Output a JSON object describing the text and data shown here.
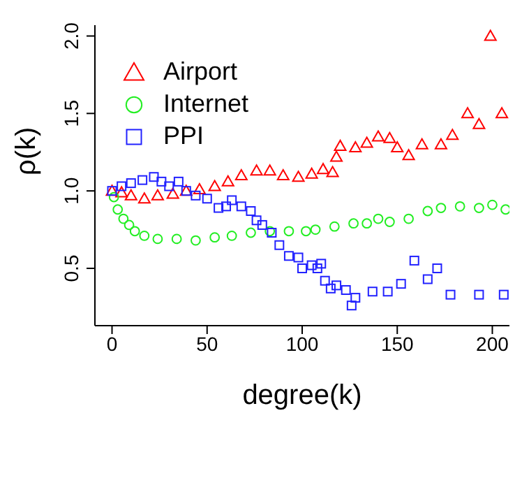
{
  "chart_data": {
    "type": "scatter",
    "xlabel": "degree(k)",
    "ylabel": "ρ(k)",
    "xlim": [
      -9,
      209
    ],
    "ylim": [
      0.13,
      2.07
    ],
    "xticks": [
      0,
      50,
      100,
      150,
      200
    ],
    "yticks": [
      {
        "value": 0.5,
        "label": "0.5"
      },
      {
        "value": 1,
        "label": "1.0"
      },
      {
        "value": 1.5,
        "label": "1.5"
      },
      {
        "value": 2,
        "label": "2.0"
      }
    ],
    "legend": "top left",
    "series": [
      {
        "name": "Airport",
        "color": "#ff0000",
        "marker": "triangle",
        "x": [
          0,
          5,
          10,
          17,
          24,
          32,
          39,
          46,
          54,
          61,
          68,
          76,
          83,
          90,
          98,
          105,
          111,
          116,
          118,
          120,
          128,
          134,
          140,
          146,
          150,
          156,
          163,
          173,
          179,
          187,
          193,
          199,
          205
        ],
        "values": [
          1.0,
          0.99,
          0.97,
          0.95,
          0.97,
          0.98,
          1.0,
          1.01,
          1.03,
          1.06,
          1.1,
          1.13,
          1.13,
          1.1,
          1.09,
          1.11,
          1.14,
          1.12,
          1.22,
          1.29,
          1.28,
          1.31,
          1.35,
          1.34,
          1.28,
          1.23,
          1.3,
          1.3,
          1.36,
          1.5,
          1.43,
          2.0,
          1.5
        ]
      },
      {
        "name": "Internet",
        "color": "#22ee22",
        "marker": "circle",
        "x": [
          1,
          3,
          6,
          9,
          12,
          17,
          24,
          34,
          44,
          54,
          63,
          73,
          83,
          93,
          102,
          107,
          117,
          127,
          134,
          140,
          146,
          156,
          166,
          173,
          183,
          193,
          200,
          207
        ],
        "values": [
          0.96,
          0.88,
          0.82,
          0.78,
          0.74,
          0.71,
          0.69,
          0.69,
          0.68,
          0.7,
          0.71,
          0.73,
          0.74,
          0.74,
          0.74,
          0.75,
          0.77,
          0.79,
          0.79,
          0.82,
          0.8,
          0.82,
          0.87,
          0.89,
          0.9,
          0.89,
          0.91,
          0.88
        ]
      },
      {
        "name": "PPI",
        "color": "#2222ff",
        "marker": "square",
        "x": [
          0,
          5,
          10,
          16,
          22,
          26,
          30,
          35,
          39,
          44,
          50,
          56,
          60,
          63,
          68,
          73,
          76,
          79,
          84,
          88,
          93,
          98,
          100,
          105,
          108,
          110,
          112,
          115,
          118,
          123,
          126,
          128,
          137,
          145,
          152,
          159,
          166,
          171,
          178,
          193,
          206
        ],
        "values": [
          1.0,
          1.03,
          1.05,
          1.07,
          1.09,
          1.06,
          1.03,
          1.06,
          1.0,
          0.97,
          0.95,
          0.89,
          0.9,
          0.94,
          0.9,
          0.87,
          0.81,
          0.78,
          0.73,
          0.65,
          0.58,
          0.57,
          0.5,
          0.52,
          0.5,
          0.53,
          0.42,
          0.37,
          0.39,
          0.36,
          0.26,
          0.31,
          0.35,
          0.35,
          0.4,
          0.55,
          0.43,
          0.5,
          0.33,
          0.33,
          0.33
        ]
      }
    ]
  }
}
